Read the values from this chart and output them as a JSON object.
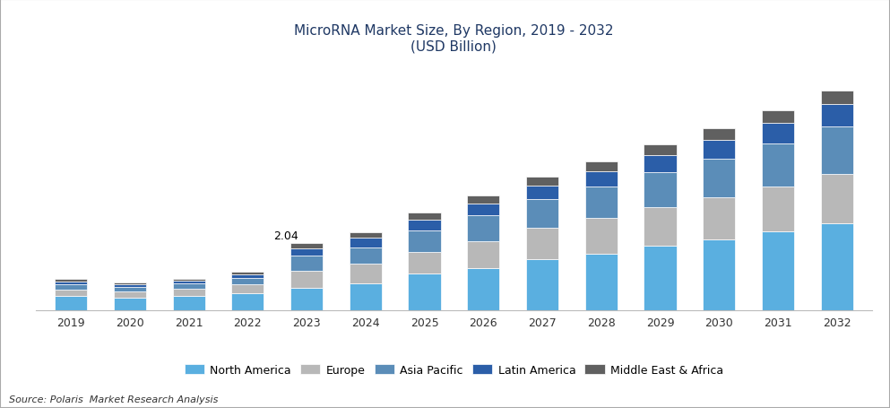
{
  "years": [
    2019,
    2020,
    2021,
    2022,
    2023,
    2024,
    2025,
    2026,
    2027,
    2028,
    2029,
    2030,
    2031,
    2032
  ],
  "title_line1": "MicroRNA Market Size, By Region, 2019 - 2032",
  "title_line2": "(USD Billion)",
  "source": "Source: Polaris  Market Research Analysis",
  "annotation_year": 2023,
  "annotation_text": "2.04",
  "regions": [
    "North America",
    "Europe",
    "Asia Pacific",
    "Latin America",
    "Middle East & Africa"
  ],
  "colors": [
    "#5AAFE0",
    "#B8B8B8",
    "#5B8DB8",
    "#2B5EA8",
    "#606060"
  ],
  "data": {
    "North America": [
      0.42,
      0.38,
      0.44,
      0.52,
      0.68,
      0.82,
      1.1,
      1.28,
      1.55,
      1.72,
      1.95,
      2.15,
      2.4,
      2.65
    ],
    "Europe": [
      0.2,
      0.18,
      0.2,
      0.25,
      0.52,
      0.58,
      0.68,
      0.82,
      0.95,
      1.08,
      1.18,
      1.28,
      1.38,
      1.5
    ],
    "Asia Pacific": [
      0.16,
      0.14,
      0.16,
      0.2,
      0.45,
      0.52,
      0.65,
      0.78,
      0.88,
      0.98,
      1.08,
      1.2,
      1.32,
      1.45
    ],
    "Latin America": [
      0.09,
      0.08,
      0.09,
      0.11,
      0.24,
      0.28,
      0.33,
      0.38,
      0.42,
      0.47,
      0.52,
      0.57,
      0.62,
      0.68
    ],
    "Middle East & Africa": [
      0.07,
      0.06,
      0.07,
      0.09,
      0.15,
      0.18,
      0.21,
      0.24,
      0.27,
      0.3,
      0.33,
      0.36,
      0.39,
      0.43
    ]
  },
  "ylim": [
    0,
    7.5
  ],
  "bar_width": 0.55,
  "title_color": "#1F3864",
  "border_color": "#BBBBBB",
  "fig_border_color": "#AAAAAA"
}
